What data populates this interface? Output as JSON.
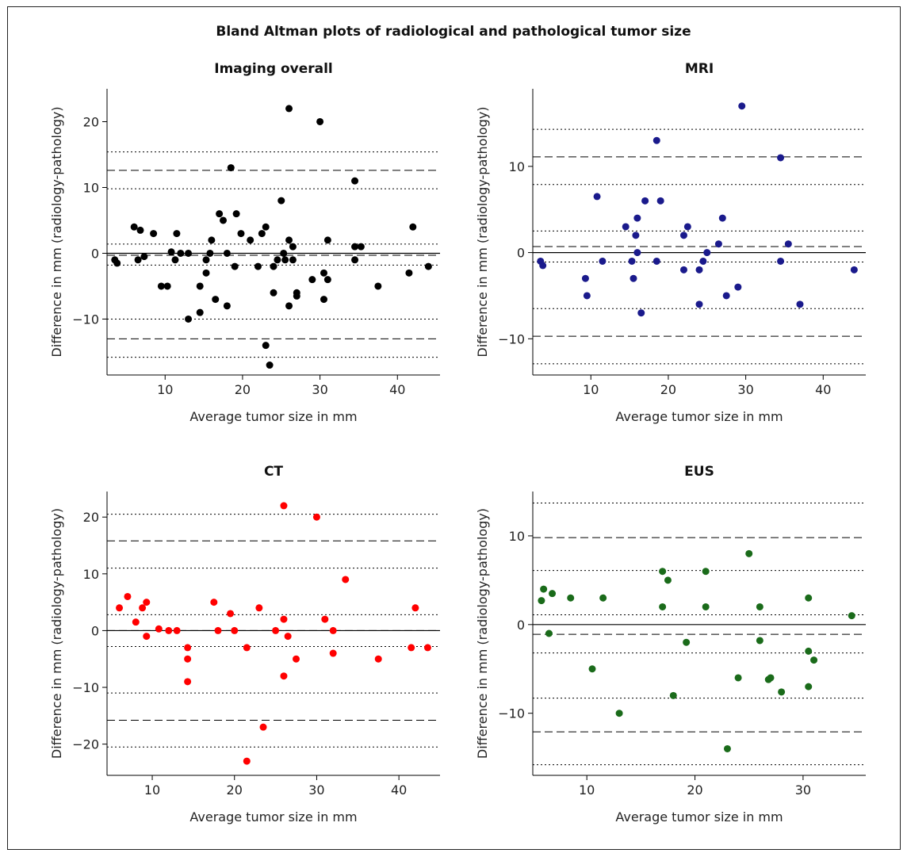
{
  "title": "Bland Altman plots of radiological and pathological tumor size",
  "chart_data": [
    {
      "type": "scatter",
      "title": "Imaging overall",
      "xlabel": "Average tumor size in mm",
      "ylabel": "Difference in mm (radiology-pathology)",
      "xlim": [
        2.5,
        45.5
      ],
      "ylim": [
        -18.5,
        25
      ],
      "xticks": [
        10,
        20,
        30,
        40
      ],
      "yticks": [
        -10,
        0,
        10,
        20
      ],
      "color": "#000000",
      "zero_line": 0,
      "mean": -0.3,
      "loa": [
        -13,
        12.6
      ],
      "ci_lines": [
        -15.8,
        -10,
        -1.8,
        1.4,
        9.8,
        15.4
      ],
      "points": [
        [
          3.5,
          -1
        ],
        [
          3.8,
          -1.5
        ],
        [
          6,
          4
        ],
        [
          6.5,
          -1
        ],
        [
          6.8,
          3.5
        ],
        [
          7.3,
          -0.5
        ],
        [
          8.5,
          3
        ],
        [
          9.5,
          -5
        ],
        [
          10.3,
          -5
        ],
        [
          10.8,
          0.2
        ],
        [
          11.3,
          -1
        ],
        [
          11.5,
          3
        ],
        [
          12,
          0
        ],
        [
          13,
          0
        ],
        [
          13,
          -10
        ],
        [
          14.5,
          -5
        ],
        [
          14.5,
          -9
        ],
        [
          15.3,
          -3
        ],
        [
          15.3,
          -1
        ],
        [
          15.8,
          0
        ],
        [
          16,
          2
        ],
        [
          16.5,
          -7
        ],
        [
          17,
          6
        ],
        [
          17.5,
          5
        ],
        [
          18,
          0
        ],
        [
          18,
          -8
        ],
        [
          18.5,
          13
        ],
        [
          19,
          -2
        ],
        [
          19.2,
          6
        ],
        [
          19.8,
          3
        ],
        [
          21,
          2
        ],
        [
          22,
          -2
        ],
        [
          22.5,
          3
        ],
        [
          23,
          -14
        ],
        [
          23,
          4
        ],
        [
          23.5,
          -17
        ],
        [
          24,
          -6
        ],
        [
          24,
          -2
        ],
        [
          24.5,
          -1
        ],
        [
          25,
          8
        ],
        [
          25.3,
          0
        ],
        [
          25.5,
          -1
        ],
        [
          26,
          22
        ],
        [
          26,
          2
        ],
        [
          26,
          -8
        ],
        [
          26.5,
          -1
        ],
        [
          26.5,
          1
        ],
        [
          27,
          -6.5
        ],
        [
          27,
          -6
        ],
        [
          29,
          -4
        ],
        [
          30,
          20
        ],
        [
          30.5,
          -7
        ],
        [
          30.5,
          -3
        ],
        [
          31,
          2
        ],
        [
          31,
          -4
        ],
        [
          34.5,
          11
        ],
        [
          34.5,
          -1
        ],
        [
          34.5,
          1
        ],
        [
          35.3,
          1
        ],
        [
          37.5,
          -5
        ],
        [
          41.5,
          -3
        ],
        [
          42,
          4
        ],
        [
          44,
          -2
        ]
      ]
    },
    {
      "type": "scatter",
      "title": "MRI",
      "xlabel": "Average tumor size in mm",
      "ylabel": "Difference in mm (radiology-pathology)",
      "xlim": [
        2.5,
        45.5
      ],
      "ylim": [
        -14.2,
        19
      ],
      "xticks": [
        10,
        20,
        30,
        40
      ],
      "yticks": [
        -10,
        0,
        10
      ],
      "color": "#1a1a8c",
      "zero_line": 0,
      "mean": 0.7,
      "loa": [
        -9.7,
        11.1
      ],
      "ci_lines": [
        -12.9,
        -6.5,
        -1.1,
        2.5,
        7.9,
        14.3
      ],
      "points": [
        [
          3.5,
          -1
        ],
        [
          3.8,
          -1.5
        ],
        [
          9.3,
          -3
        ],
        [
          9.5,
          -5
        ],
        [
          10.8,
          6.5
        ],
        [
          11.5,
          -1
        ],
        [
          14.5,
          3
        ],
        [
          15.3,
          -1
        ],
        [
          15.5,
          -3
        ],
        [
          15.8,
          2
        ],
        [
          16,
          4
        ],
        [
          16,
          0
        ],
        [
          16.5,
          -7
        ],
        [
          17,
          6
        ],
        [
          18.5,
          13
        ],
        [
          18.5,
          -1
        ],
        [
          19,
          6
        ],
        [
          22,
          -2
        ],
        [
          22,
          2
        ],
        [
          22.5,
          3
        ],
        [
          24,
          -6
        ],
        [
          24,
          -2
        ],
        [
          24.5,
          -1
        ],
        [
          25,
          0
        ],
        [
          26.5,
          1
        ],
        [
          27,
          4
        ],
        [
          27.5,
          -5
        ],
        [
          29,
          -4
        ],
        [
          29.5,
          17
        ],
        [
          34.5,
          11
        ],
        [
          34.5,
          -1
        ],
        [
          35.5,
          1
        ],
        [
          37,
          -6
        ],
        [
          44,
          -2
        ]
      ]
    },
    {
      "type": "scatter",
      "title": "CT",
      "xlabel": "Average tumor size in mm",
      "ylabel": "Difference in mm (radiology-pathology)",
      "xlim": [
        4.5,
        45
      ],
      "ylim": [
        -25.5,
        24.5
      ],
      "xticks": [
        10,
        20,
        30,
        40
      ],
      "yticks": [
        -20,
        -10,
        0,
        10,
        20
      ],
      "color": "#ff0000",
      "zero_line": 0,
      "mean": 0,
      "loa": [
        -15.8,
        15.8
      ],
      "ci_lines": [
        -20.5,
        -11,
        -2.8,
        2.8,
        11,
        20.5
      ],
      "points": [
        [
          6,
          4
        ],
        [
          7,
          6
        ],
        [
          8,
          1.5
        ],
        [
          8.8,
          4
        ],
        [
          9.3,
          5
        ],
        [
          9.3,
          -1
        ],
        [
          10.8,
          0.3
        ],
        [
          12,
          0
        ],
        [
          13,
          0
        ],
        [
          14.3,
          -3
        ],
        [
          14.3,
          -5
        ],
        [
          14.3,
          -9
        ],
        [
          17.5,
          5
        ],
        [
          18,
          0
        ],
        [
          19.5,
          3
        ],
        [
          20,
          0
        ],
        [
          21.5,
          -3
        ],
        [
          21.5,
          -23
        ],
        [
          23,
          4
        ],
        [
          23.5,
          -17
        ],
        [
          25,
          0
        ],
        [
          26,
          22
        ],
        [
          26,
          2
        ],
        [
          26,
          -8
        ],
        [
          26.5,
          -1
        ],
        [
          27.5,
          -5
        ],
        [
          30,
          20
        ],
        [
          31,
          2
        ],
        [
          32,
          0
        ],
        [
          32,
          -4
        ],
        [
          33.5,
          9
        ],
        [
          37.5,
          -5
        ],
        [
          41.5,
          -3
        ],
        [
          42,
          4
        ],
        [
          43.5,
          -3
        ]
      ]
    },
    {
      "type": "scatter",
      "title": "EUS",
      "xlabel": "Average tumor size in mm",
      "ylabel": "Difference in mm (radiology-pathology)",
      "xlim": [
        5,
        35.8
      ],
      "ylim": [
        -17,
        15
      ],
      "xticks": [
        10,
        20,
        30
      ],
      "yticks": [
        -10,
        0,
        10
      ],
      "color": "#1a6b1a",
      "zero_line": 0,
      "mean": -1.1,
      "loa": [
        -12.1,
        9.8
      ],
      "ci_lines": [
        -15.8,
        -8.3,
        -3.2,
        1.1,
        6.1,
        13.7
      ],
      "points": [
        [
          5.8,
          2.7
        ],
        [
          6,
          4
        ],
        [
          6.5,
          -1
        ],
        [
          6.8,
          3.5
        ],
        [
          8.5,
          3
        ],
        [
          10.5,
          -5
        ],
        [
          11.5,
          3
        ],
        [
          13,
          -10
        ],
        [
          17,
          6
        ],
        [
          17,
          2
        ],
        [
          17.5,
          5
        ],
        [
          18,
          -8
        ],
        [
          19.2,
          -2
        ],
        [
          21,
          6
        ],
        [
          21,
          2
        ],
        [
          23,
          -14
        ],
        [
          24,
          -6
        ],
        [
          25,
          8
        ],
        [
          26,
          2
        ],
        [
          26,
          -1.8
        ],
        [
          26.8,
          -6.2
        ],
        [
          27,
          -6
        ],
        [
          28,
          -7.6
        ],
        [
          30.5,
          3
        ],
        [
          30.5,
          -3
        ],
        [
          30.5,
          -7
        ],
        [
          31,
          -4
        ],
        [
          34.5,
          1
        ]
      ]
    }
  ]
}
